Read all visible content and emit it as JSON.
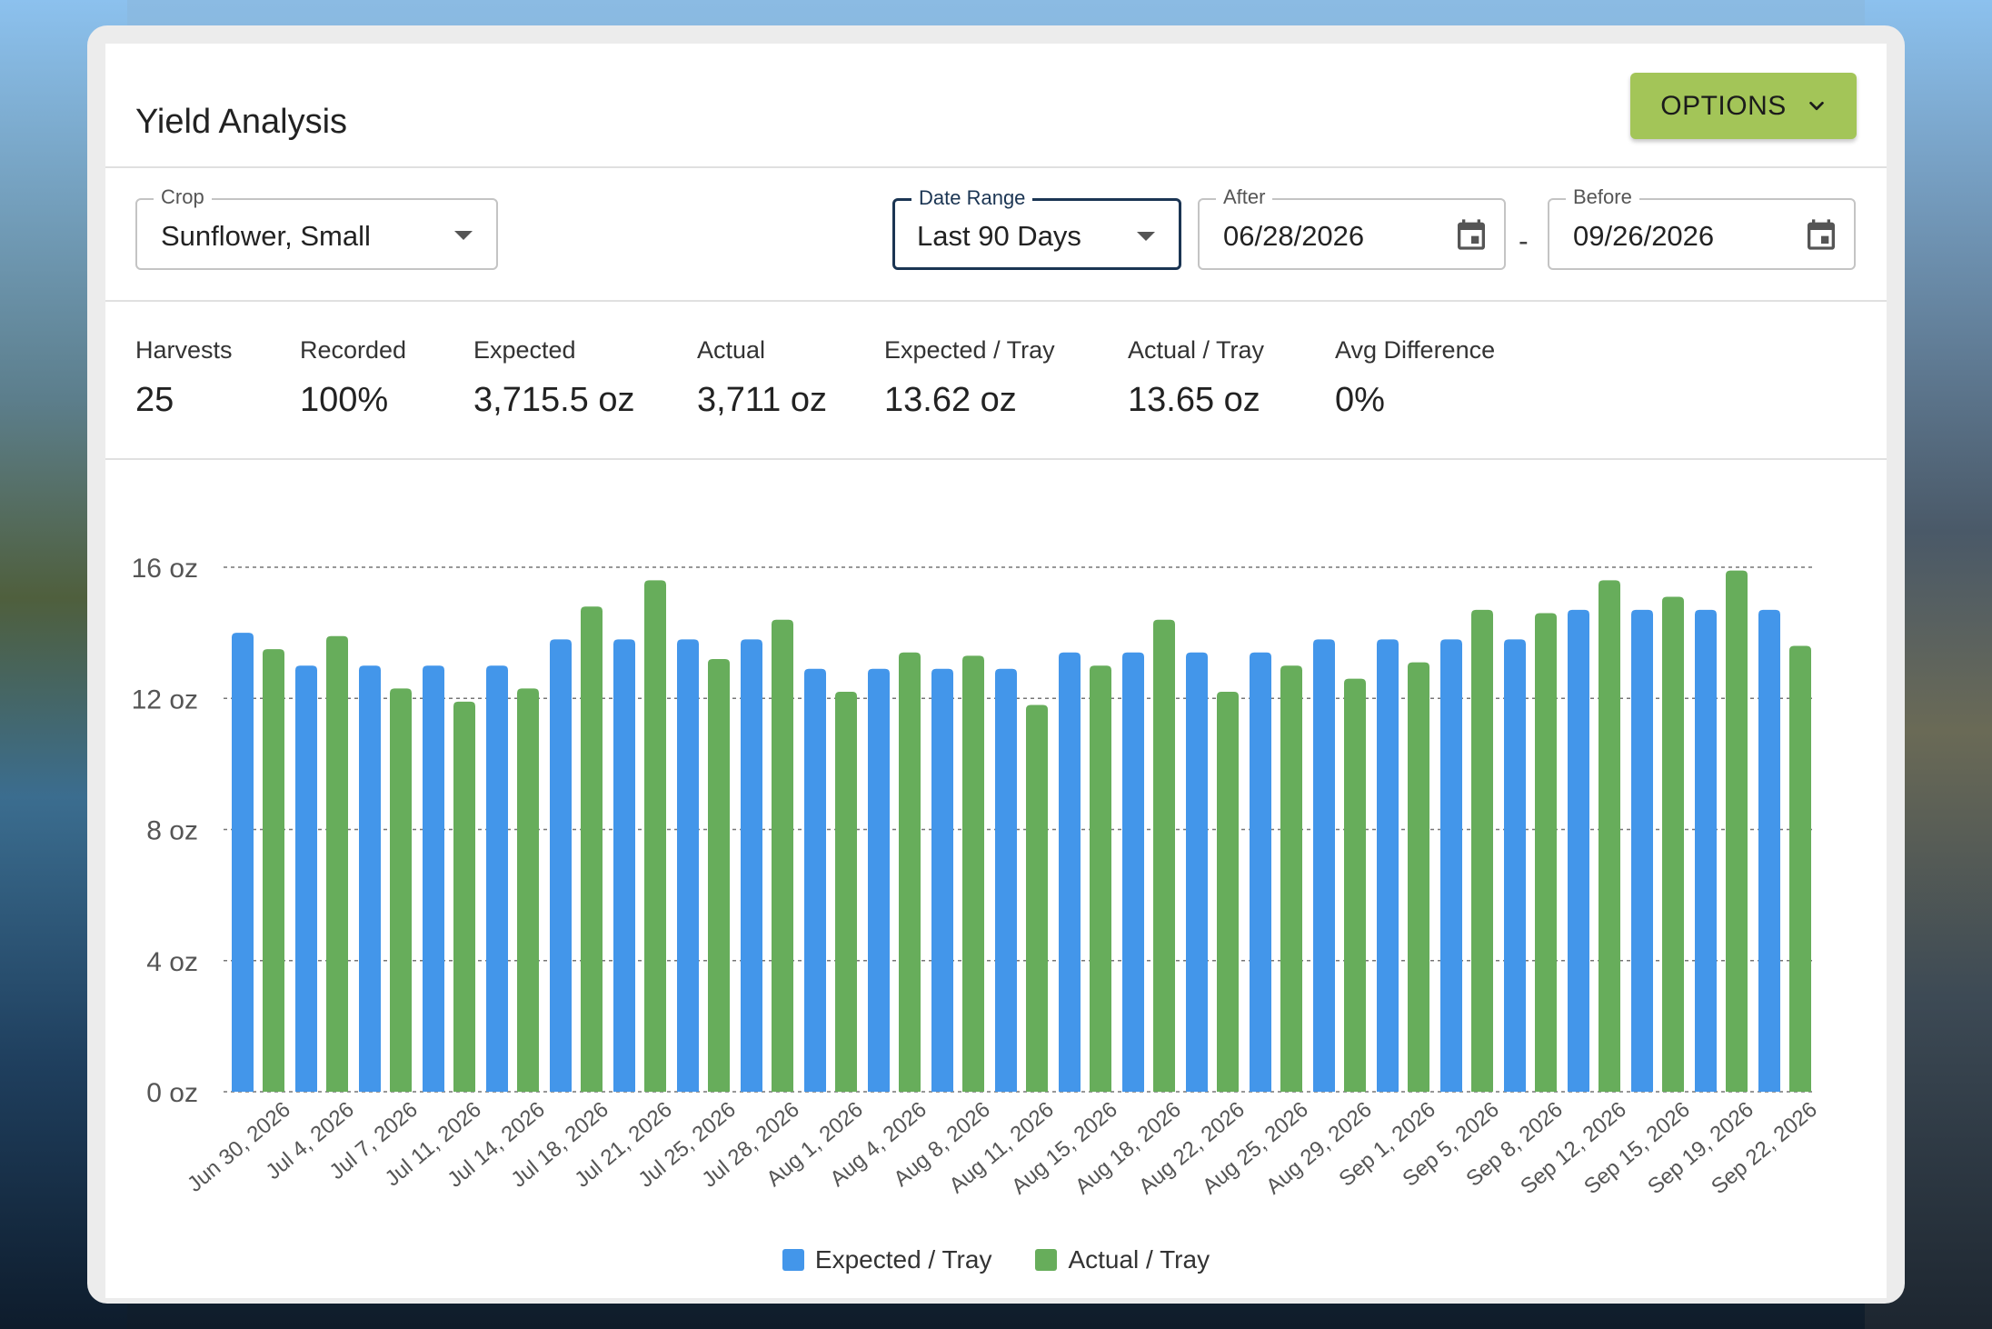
{
  "header": {
    "title": "Yield Analysis",
    "options_label": "OPTIONS"
  },
  "filters": {
    "crop": {
      "label": "Crop",
      "value": "Sunflower, Small"
    },
    "date_range": {
      "label": "Date Range",
      "value": "Last 90 Days"
    },
    "after": {
      "label": "After",
      "value": "06/28/2026"
    },
    "before": {
      "label": "Before",
      "value": "09/26/2026"
    },
    "separator": "-"
  },
  "stats": [
    {
      "label": "Harvests",
      "value": "25"
    },
    {
      "label": "Recorded",
      "value": "100%"
    },
    {
      "label": "Expected",
      "value": "3,715.5 oz"
    },
    {
      "label": "Actual",
      "value": "3,711 oz"
    },
    {
      "label": "Expected / Tray",
      "value": "13.62 oz"
    },
    {
      "label": "Actual / Tray",
      "value": "13.65 oz"
    },
    {
      "label": "Avg Difference",
      "value": "0%"
    }
  ],
  "colors": {
    "expected": "#4396ea",
    "actual": "#67ad5b",
    "options_button": "#a3c558",
    "focus_border": "#1b3553"
  },
  "chart_data": {
    "type": "bar",
    "categories": [
      "Jun 30, 2026",
      "Jul 4, 2026",
      "Jul 7, 2026",
      "Jul 11, 2026",
      "Jul 14, 2026",
      "Jul 18, 2026",
      "Jul 21, 2026",
      "Jul 25, 2026",
      "Jul 28, 2026",
      "Aug 1, 2026",
      "Aug 4, 2026",
      "Aug 8, 2026",
      "Aug 11, 2026",
      "Aug 15, 2026",
      "Aug 18, 2026",
      "Aug 22, 2026",
      "Aug 25, 2026",
      "Aug 29, 2026",
      "Sep 1, 2026",
      "Sep 5, 2026",
      "Sep 8, 2026",
      "Sep 12, 2026",
      "Sep 15, 2026",
      "Sep 19, 2026",
      "Sep 22, 2026"
    ],
    "series": [
      {
        "name": "Expected / Tray",
        "color": "#4396ea",
        "values": [
          14.0,
          13.0,
          13.0,
          13.0,
          13.0,
          13.8,
          13.8,
          13.8,
          13.8,
          12.9,
          12.9,
          12.9,
          12.9,
          13.4,
          13.4,
          13.4,
          13.4,
          13.8,
          13.8,
          13.8,
          13.8,
          14.7,
          14.7,
          14.7,
          14.7
        ]
      },
      {
        "name": "Actual / Tray",
        "color": "#67ad5b",
        "values": [
          13.5,
          13.9,
          12.3,
          11.9,
          12.3,
          14.8,
          15.6,
          13.2,
          14.4,
          12.2,
          13.4,
          13.3,
          11.8,
          13.0,
          14.4,
          12.2,
          13.0,
          12.6,
          13.1,
          14.7,
          14.6,
          15.6,
          15.1,
          15.9,
          13.6
        ]
      }
    ],
    "yticks": [
      "0 oz",
      "4 oz",
      "8 oz",
      "12 oz",
      "16 oz"
    ],
    "ylim": [
      0,
      16
    ],
    "grid": true,
    "legend": "bottom-center"
  }
}
